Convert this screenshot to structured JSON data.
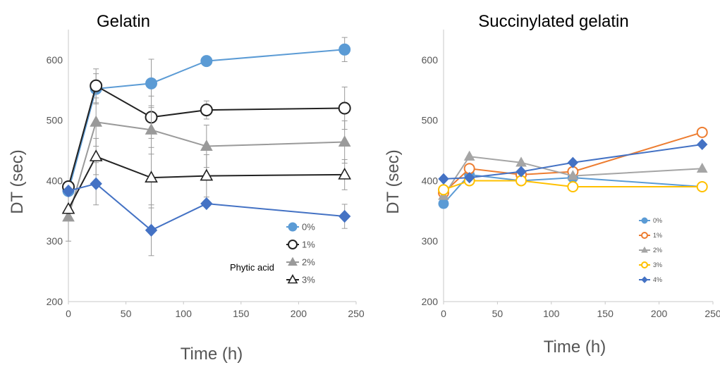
{
  "chart_data": [
    {
      "type": "line",
      "title": "Gelatin",
      "xlabel": "Time (h)",
      "ylabel": "DT (sec)",
      "xlim": [
        0,
        250
      ],
      "ylim": [
        200,
        650
      ],
      "xticks": [
        0,
        50,
        100,
        150,
        200,
        250
      ],
      "yticks": [
        200,
        300,
        400,
        500,
        600
      ],
      "grid": false,
      "legend_position": "bottom-right",
      "legend_title": "Phytic acid",
      "x": [
        0,
        24,
        72,
        120,
        240
      ],
      "series": [
        {
          "name": "0%",
          "values": [
            383,
            552,
            561,
            598,
            617
          ],
          "color": "#5b9bd5",
          "marker": "circle-filled",
          "errors": [
            0,
            25,
            40,
            0,
            20
          ]
        },
        {
          "name": "1%",
          "values": [
            390,
            557,
            505,
            517,
            520
          ],
          "color": "#222222",
          "marker": "circle-open",
          "errors": [
            0,
            28,
            35,
            15,
            35
          ]
        },
        {
          "name": "2%",
          "values": [
            340,
            497,
            484,
            457,
            464
          ],
          "color": "#9a9a9a",
          "marker": "triangle-filled",
          "errors": [
            40,
            40,
            40,
            35,
            35
          ]
        },
        {
          "name": "3%",
          "values": [
            353,
            440,
            405,
            408,
            410
          ],
          "color": "#222222",
          "marker": "triangle-open",
          "errors": [
            0,
            30,
            50,
            35,
            25
          ]
        },
        {
          "values": [
            383,
            395,
            318,
            362,
            341
          ],
          "color": "#4472c4",
          "marker": "diamond-filled",
          "errors": [
            0,
            35,
            42,
            0,
            20
          ]
        }
      ]
    },
    {
      "type": "line",
      "title": "Succinylated gelatin",
      "xlabel": "Time (h)",
      "ylabel": "DT (sec)",
      "xlim": [
        0,
        250
      ],
      "ylim": [
        200,
        650
      ],
      "xticks": [
        0,
        50,
        100,
        150,
        200,
        250
      ],
      "yticks": [
        200,
        300,
        400,
        500,
        600
      ],
      "grid": false,
      "legend_position": "bottom-right",
      "x": [
        0,
        24,
        72,
        120,
        240
      ],
      "series": [
        {
          "name": "0%",
          "values": [
            362,
            410,
            400,
            405,
            390
          ],
          "color": "#5b9bd5",
          "marker": "circle-filled"
        },
        {
          "name": "1%",
          "values": [
            380,
            420,
            410,
            415,
            480
          ],
          "color": "#ed7d31",
          "marker": "circle-open"
        },
        {
          "name": "2%",
          "values": [
            375,
            440,
            430,
            408,
            420
          ],
          "color": "#a5a5a5",
          "marker": "triangle-filled"
        },
        {
          "name": "3%",
          "values": [
            385,
            400,
            400,
            390,
            390
          ],
          "color": "#ffc000",
          "marker": "circle-open"
        },
        {
          "name": "4%",
          "values": [
            403,
            405,
            415,
            430,
            460
          ],
          "color": "#4472c4",
          "marker": "diamond-filled"
        }
      ]
    }
  ]
}
